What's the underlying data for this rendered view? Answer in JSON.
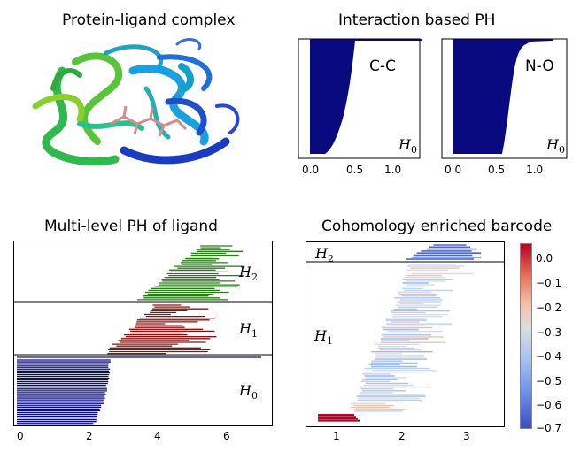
{
  "panels": {
    "protein": {
      "title": "Protein-ligand complex"
    },
    "interaction": {
      "title": "Interaction based PH",
      "left": {
        "label": "C-C",
        "dim_symbol": "H",
        "dim_sub": "0",
        "ticks": [
          "0.0",
          "0.5",
          "1.0"
        ]
      },
      "right": {
        "label": "N-O",
        "dim_symbol": "H",
        "dim_sub": "0",
        "ticks": [
          "0.0",
          "0.5",
          "1.0"
        ]
      }
    },
    "multilevel": {
      "title": "Multi-level PH of ligand",
      "h2": {
        "symbol": "H",
        "sub": "2"
      },
      "h1": {
        "symbol": "H",
        "sub": "1"
      },
      "h0": {
        "symbol": "H",
        "sub": "0"
      },
      "ticks": [
        "0",
        "2",
        "4",
        "6"
      ]
    },
    "cohomology": {
      "title": "Cohomology enriched barcode",
      "h2": {
        "symbol": "H",
        "sub": "2"
      },
      "h1": {
        "symbol": "H",
        "sub": "1"
      },
      "ticks": [
        "1",
        "2",
        "3"
      ],
      "colorbar_ticks": [
        "0.0",
        "−0.1",
        "−0.2",
        "−0.3",
        "−0.4",
        "−0.5",
        "−0.6",
        "−0.7"
      ]
    }
  },
  "colors": {
    "h0_bars": "#0a0a80",
    "h1_bars": "#8b1010",
    "h2_bars": "#2a7a1a",
    "cbar_top": "#b40426",
    "cbar_mid": "#dddddd",
    "cbar_bottom": "#3b4cc0"
  }
}
